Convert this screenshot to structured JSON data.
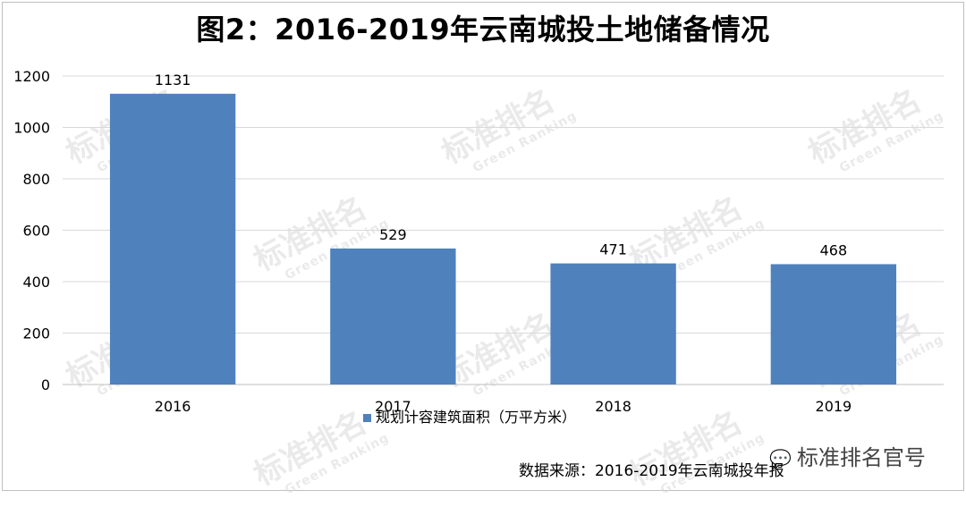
{
  "chart_data": {
    "type": "bar",
    "title": "图2：2016-2019年云南城投土地储备情况",
    "categories": [
      "2016",
      "2017",
      "2018",
      "2019"
    ],
    "series": [
      {
        "name": "规划计容建筑面积（万平方米）",
        "values": [
          1131,
          529,
          471,
          468
        ]
      }
    ],
    "ylim": [
      0,
      1200
    ],
    "yticks": [
      0,
      200,
      400,
      600,
      800,
      1000,
      1200
    ],
    "grid": true,
    "legend_position": "bottom",
    "bar_color": "#4f81bd"
  },
  "source_text": "数据来源：2016-2019年云南城投年报",
  "brand_text": "标准排名官号",
  "watermark": {
    "cn": "标准排名",
    "en": "Green Ranking"
  }
}
